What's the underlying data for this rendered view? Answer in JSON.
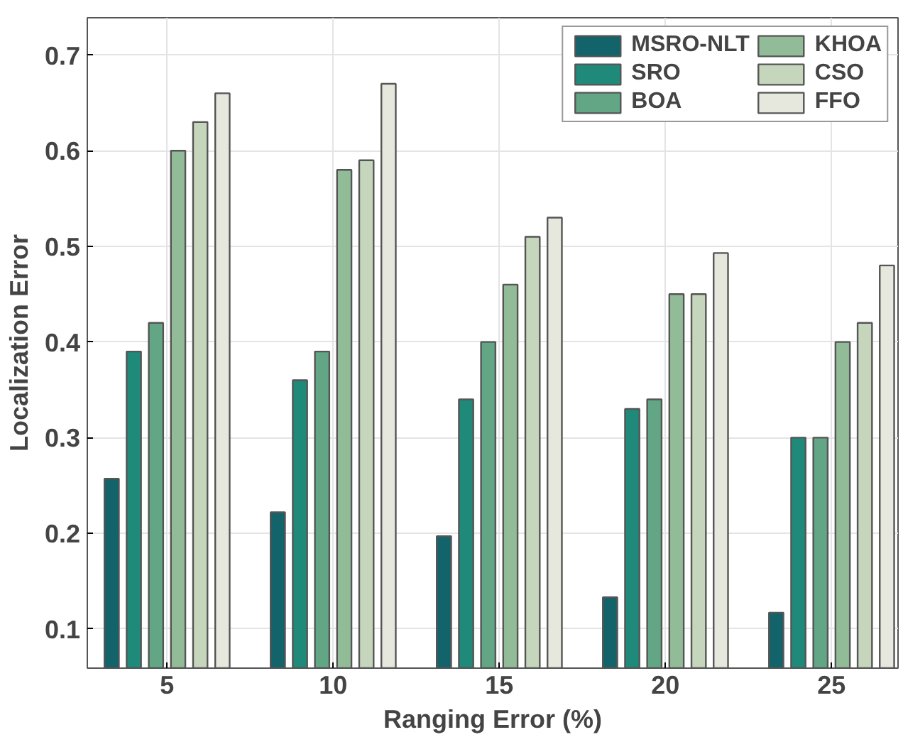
{
  "chart_data": {
    "type": "bar",
    "xlabel": "Ranging Error (%)",
    "ylabel": "Localization Error",
    "x": [
      5,
      10,
      15,
      20,
      25
    ],
    "series": [
      {
        "name": "MSRO-NLT",
        "color": "#13636b",
        "values": [
          0.257,
          0.222,
          0.197,
          0.133,
          0.117
        ]
      },
      {
        "name": "SRO",
        "color": "#1f8a7a",
        "values": [
          0.39,
          0.36,
          0.34,
          0.33,
          0.3
        ]
      },
      {
        "name": "BOA",
        "color": "#62a685",
        "values": [
          0.42,
          0.39,
          0.4,
          0.34,
          0.3
        ]
      },
      {
        "name": "KHOA",
        "color": "#92bc98",
        "values": [
          0.6,
          0.58,
          0.46,
          0.45,
          0.4
        ]
      },
      {
        "name": "CSO",
        "color": "#c5d6bd",
        "values": [
          0.63,
          0.59,
          0.51,
          0.45,
          0.42
        ]
      },
      {
        "name": "FFO",
        "color": "#e6e8de",
        "values": [
          0.66,
          0.67,
          0.53,
          0.493,
          0.48
        ]
      }
    ],
    "xlim": [
      2.6,
      27
    ],
    "xticks": [
      5,
      10,
      15,
      20,
      25
    ],
    "ylim": [
      0.059,
      0.739
    ],
    "yticks": [
      0.1,
      0.2,
      0.3,
      0.4,
      0.5,
      0.6,
      0.7
    ],
    "grid": true,
    "legend": "top right"
  }
}
